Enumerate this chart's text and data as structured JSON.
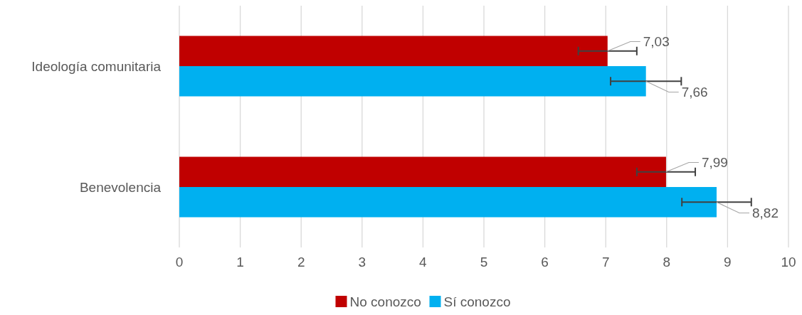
{
  "chart_data": {
    "type": "bar",
    "orientation": "horizontal",
    "categories": [
      "Ideología comunitaria",
      "Benevolencia"
    ],
    "series": [
      {
        "name": "No conozco",
        "color": "#c00000",
        "values": [
          7.03,
          7.99
        ],
        "errors": [
          0.48,
          0.48
        ],
        "value_labels": [
          "7,03",
          "7,99"
        ]
      },
      {
        "name": "Sí conozco",
        "color": "#00b0f0",
        "values": [
          7.66,
          8.82
        ],
        "errors": [
          0.58,
          0.57
        ],
        "value_labels": [
          "7,66",
          "8,82"
        ]
      }
    ],
    "xlim": [
      0,
      10
    ],
    "xticks": [
      0,
      1,
      2,
      3,
      4,
      5,
      6,
      7,
      8,
      9,
      10
    ],
    "grid": "x",
    "legend": "bottom"
  }
}
